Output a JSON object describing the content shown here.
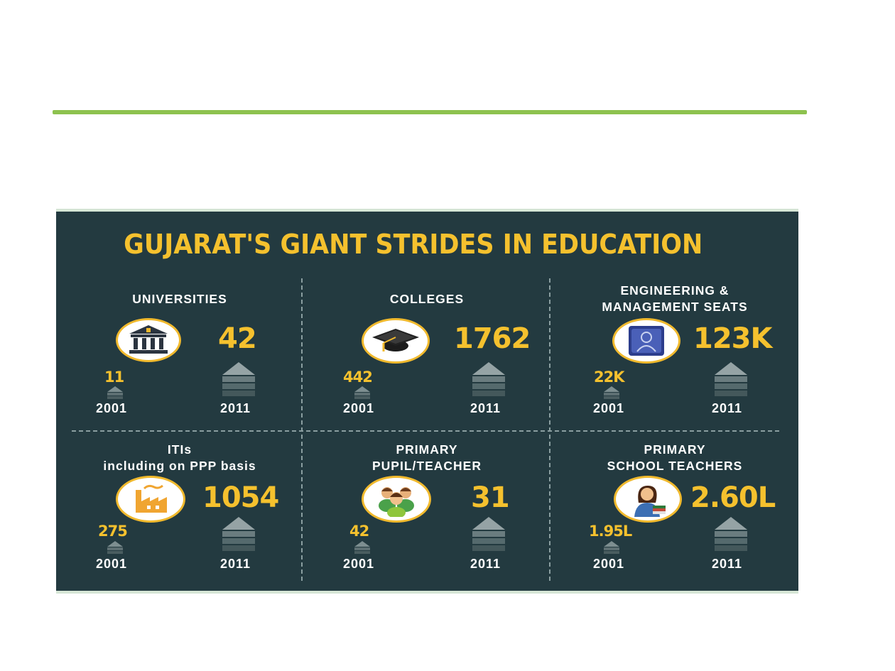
{
  "title": "GUJARAT'S GIANT STRIDES IN EDUCATION",
  "colors": {
    "background": "#233a40",
    "accent": "#f5c12e",
    "rule": "#8dc24f"
  },
  "cells": [
    {
      "label_lines": [
        "UNIVERSITIES"
      ],
      "icon": "university-building-icon",
      "value_2001": "11",
      "value_2011": "42",
      "year_2001": "2001",
      "year_2011": "2011"
    },
    {
      "label_lines": [
        "COLLEGES"
      ],
      "icon": "graduation-cap-icon",
      "value_2001": "442",
      "value_2011": "1762",
      "year_2001": "2001",
      "year_2011": "2011"
    },
    {
      "label_lines": [
        "ENGINEERING &",
        "MANAGEMENT SEATS"
      ],
      "icon": "engineer-blueprint-icon",
      "value_2001": "22K",
      "value_2011": "123K",
      "year_2001": "2001",
      "year_2011": "2011"
    },
    {
      "label_lines": [
        "ITIs",
        "including on PPP basis"
      ],
      "icon": "factory-icon",
      "value_2001": "275",
      "value_2011": "1054",
      "year_2001": "2001",
      "year_2011": "2011"
    },
    {
      "label_lines": [
        "PRIMARY",
        "PUPIL/TEACHER"
      ],
      "icon": "people-group-icon",
      "value_2001": "42",
      "value_2011": "31",
      "year_2001": "2001",
      "year_2011": "2011"
    },
    {
      "label_lines": [
        "PRIMARY",
        "SCHOOL TEACHERS"
      ],
      "icon": "teacher-with-books-icon",
      "value_2001": "1.95L",
      "value_2011": "2.60L",
      "year_2001": "2001",
      "year_2011": "2011"
    }
  ]
}
